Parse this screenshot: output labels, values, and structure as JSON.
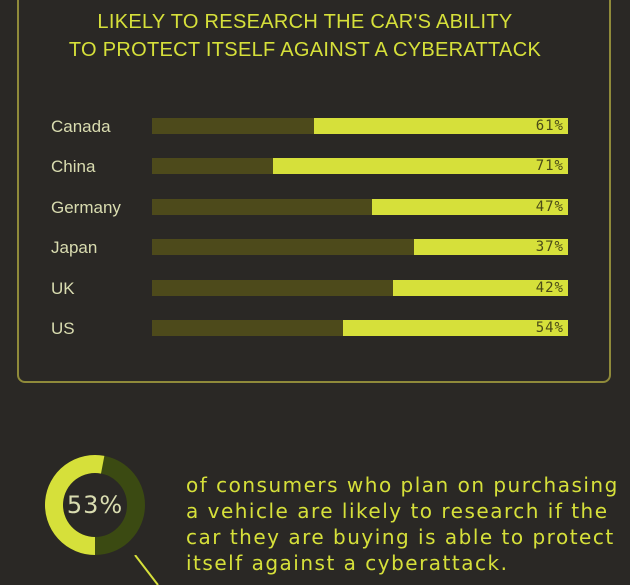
{
  "chart_data": {
    "type": "bar",
    "title_lines": [
      "LIKELY TO RESEARCH THE CAR'S ABILITY",
      "TO PROTECT ITSELF AGAINST A CYBERATTACK"
    ],
    "categories": [
      "Canada",
      "China",
      "Germany",
      "Japan",
      "UK",
      "US"
    ],
    "values": [
      61,
      71,
      47,
      37,
      42,
      54
    ],
    "value_labels": [
      "61%",
      "71%",
      "47%",
      "37%",
      "42%",
      "54%"
    ],
    "ylim": [
      0,
      100
    ],
    "colors": {
      "fill": "#d6e03a",
      "track": "#4d4a1b"
    }
  },
  "summary": {
    "percent": 53,
    "percent_label": "53%",
    "description_lines": [
      "of consumers who plan on purchasing",
      "a vehicle are likely to research if the",
      "car they are buying is able to protect",
      "itself against a cyberattack."
    ],
    "colors": {
      "fill": "#d6e03a",
      "remainder": "#3b4a12",
      "hole": "#2a2825"
    }
  }
}
